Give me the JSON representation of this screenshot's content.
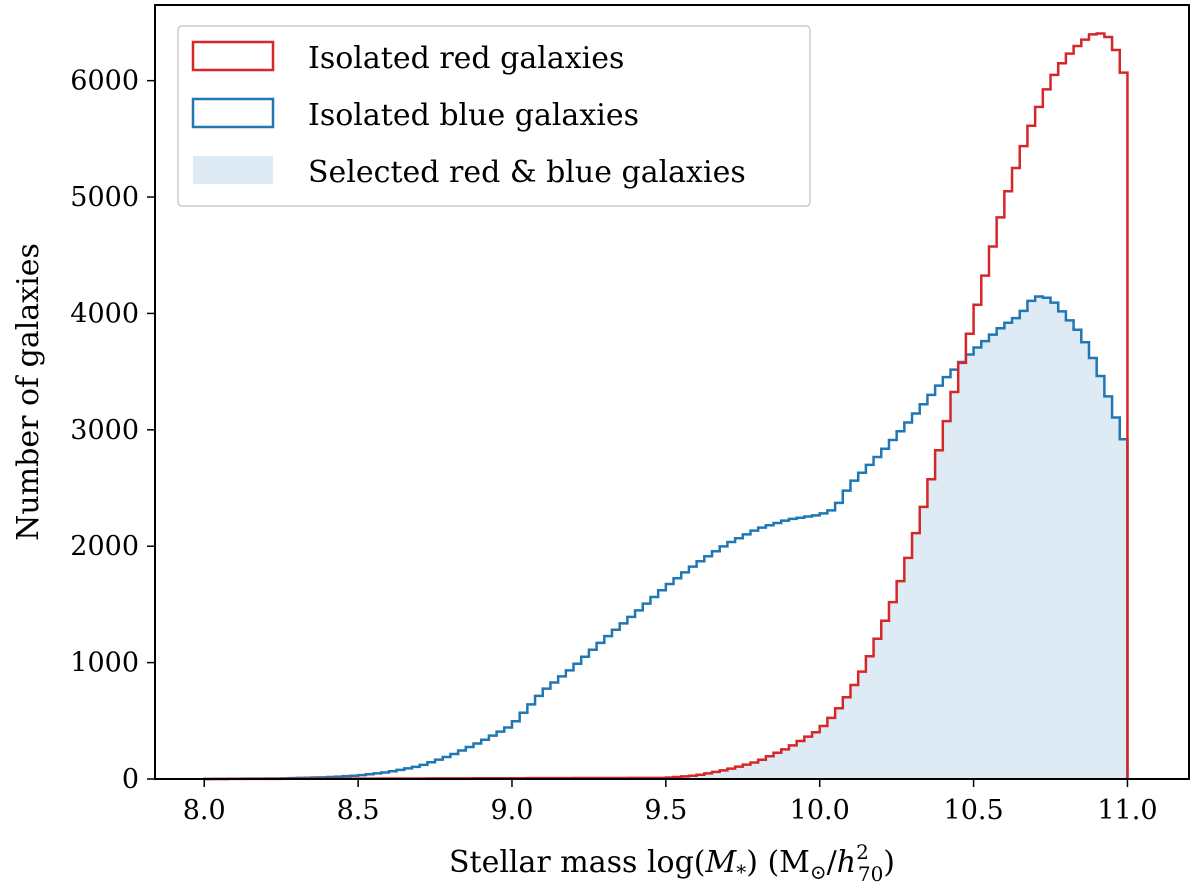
{
  "chart_data": {
    "type": "histogram",
    "xlabel": "Stellar mass log(M*) (M⊙/h₇₀²)",
    "ylabel": "Number of galaxies",
    "xlim": [
      7.84,
      11.2
    ],
    "ylim": [
      0,
      6650
    ],
    "bin_edges": {
      "start": 8.0,
      "stop": 11.0,
      "width": 0.025
    },
    "x_ticks": [
      {
        "value": 8.0,
        "label": "8.0"
      },
      {
        "value": 8.5,
        "label": "8.5"
      },
      {
        "value": 9.0,
        "label": "9.0"
      },
      {
        "value": 9.5,
        "label": "9.5"
      },
      {
        "value": 10.0,
        "label": "10.0"
      },
      {
        "value": 10.5,
        "label": "10.5"
      },
      {
        "value": 11.0,
        "label": "11.0"
      }
    ],
    "y_ticks": [
      {
        "value": 0,
        "label": "0"
      },
      {
        "value": 1000,
        "label": "1000"
      },
      {
        "value": 2000,
        "label": "2000"
      },
      {
        "value": 3000,
        "label": "3000"
      },
      {
        "value": 4000,
        "label": "4000"
      },
      {
        "value": 5000,
        "label": "5000"
      },
      {
        "value": 6000,
        "label": "6000"
      }
    ],
    "legend_position": "top-left",
    "series": [
      {
        "name": "Isolated red galaxies",
        "style": "step",
        "color": "#d62728",
        "anchors": [
          [
            8.0,
            0
          ],
          [
            9.5,
            10
          ],
          [
            9.6,
            30
          ],
          [
            9.7,
            80
          ],
          [
            9.8,
            150
          ],
          [
            9.9,
            270
          ],
          [
            10.0,
            420
          ],
          [
            10.05,
            560
          ],
          [
            10.1,
            750
          ],
          [
            10.15,
            980
          ],
          [
            10.2,
            1280
          ],
          [
            10.25,
            1600
          ],
          [
            10.3,
            2000
          ],
          [
            10.35,
            2450
          ],
          [
            10.4,
            2950
          ],
          [
            10.45,
            3450
          ],
          [
            10.5,
            3950
          ],
          [
            10.55,
            4450
          ],
          [
            10.6,
            4950
          ],
          [
            10.65,
            5350
          ],
          [
            10.7,
            5700
          ],
          [
            10.75,
            6000
          ],
          [
            10.8,
            6200
          ],
          [
            10.85,
            6330
          ],
          [
            10.9,
            6420
          ],
          [
            10.95,
            6360
          ],
          [
            10.99,
            6050
          ]
        ]
      },
      {
        "name": "Isolated blue galaxies",
        "style": "step",
        "color": "#1f77b4",
        "anchors": [
          [
            8.0,
            0
          ],
          [
            8.25,
            5
          ],
          [
            8.4,
            15
          ],
          [
            8.5,
            30
          ],
          [
            8.6,
            60
          ],
          [
            8.7,
            110
          ],
          [
            8.8,
            200
          ],
          [
            8.9,
            320
          ],
          [
            9.0,
            460
          ],
          [
            9.1,
            750
          ],
          [
            9.2,
            960
          ],
          [
            9.3,
            1200
          ],
          [
            9.4,
            1420
          ],
          [
            9.5,
            1650
          ],
          [
            9.6,
            1850
          ],
          [
            9.7,
            2020
          ],
          [
            9.8,
            2150
          ],
          [
            9.9,
            2230
          ],
          [
            10.0,
            2270
          ],
          [
            10.05,
            2320
          ],
          [
            10.1,
            2530
          ],
          [
            10.2,
            2800
          ],
          [
            10.3,
            3100
          ],
          [
            10.4,
            3420
          ],
          [
            10.5,
            3680
          ],
          [
            10.6,
            3900
          ],
          [
            10.65,
            3980
          ],
          [
            10.7,
            4150
          ],
          [
            10.75,
            4130
          ],
          [
            10.8,
            3980
          ],
          [
            10.85,
            3820
          ],
          [
            10.9,
            3550
          ],
          [
            10.95,
            3200
          ],
          [
            10.99,
            2900
          ]
        ]
      },
      {
        "name": "Selected red & blue galaxies",
        "style": "filled",
        "color": "#deebf5"
      }
    ]
  }
}
